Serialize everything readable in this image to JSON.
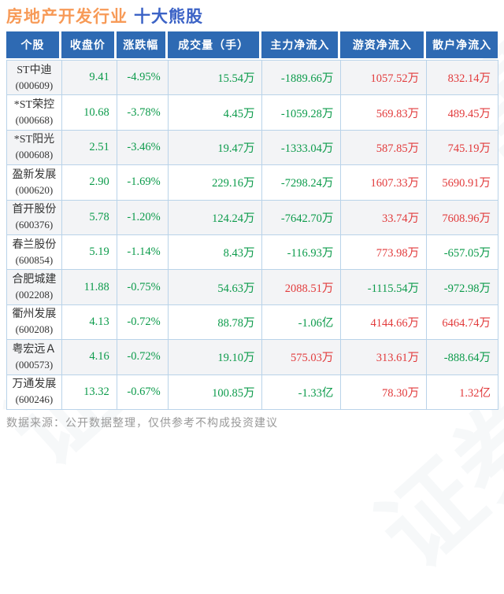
{
  "title": {
    "industry": "房地产开发行业",
    "topic": "十大熊股"
  },
  "watermark": "证券之星",
  "footer": {
    "text": "数据来源：公开数据整理，仅供参考不构成投资建议"
  },
  "colors": {
    "up": "#e23b3c",
    "down": "#0c9b4b",
    "header_bg": "#2e6ab3",
    "header_text": "#ffffff",
    "title_industry": "#f79a57",
    "title_topic": "#3c63c6",
    "footer_text": "#999999"
  },
  "chart_data": {
    "type": "table",
    "title": "房地产开发行业 十大熊股",
    "columns": [
      "个股",
      "收盘价",
      "涨跌幅",
      "成交量（手）",
      "主力净流入",
      "游资净流入",
      "散户净流入"
    ],
    "rows": [
      {
        "name": "ST中迪",
        "code": "(000609)",
        "close": "9.41",
        "change": "-4.95%",
        "volume": "15.54万",
        "main": "-1889.66万",
        "main_dir": "down",
        "hot": "1057.52万",
        "hot_dir": "up",
        "retail": "832.14万",
        "retail_dir": "up"
      },
      {
        "name": "*ST荣控",
        "code": "(000668)",
        "close": "10.68",
        "change": "-3.78%",
        "volume": "4.45万",
        "main": "-1059.28万",
        "main_dir": "down",
        "hot": "569.83万",
        "hot_dir": "up",
        "retail": "489.45万",
        "retail_dir": "up"
      },
      {
        "name": "*ST阳光",
        "code": "(000608)",
        "close": "2.51",
        "change": "-3.46%",
        "volume": "19.47万",
        "main": "-1333.04万",
        "main_dir": "down",
        "hot": "587.85万",
        "hot_dir": "up",
        "retail": "745.19万",
        "retail_dir": "up"
      },
      {
        "name": "盈新发展",
        "code": "(000620)",
        "close": "2.90",
        "change": "-1.69%",
        "volume": "229.16万",
        "main": "-7298.24万",
        "main_dir": "down",
        "hot": "1607.33万",
        "hot_dir": "up",
        "retail": "5690.91万",
        "retail_dir": "up"
      },
      {
        "name": "首开股份",
        "code": "(600376)",
        "close": "5.78",
        "change": "-1.20%",
        "volume": "124.24万",
        "main": "-7642.70万",
        "main_dir": "down",
        "hot": "33.74万",
        "hot_dir": "up",
        "retail": "7608.96万",
        "retail_dir": "up"
      },
      {
        "name": "春兰股份",
        "code": "(600854)",
        "close": "5.19",
        "change": "-1.14%",
        "volume": "8.43万",
        "main": "-116.93万",
        "main_dir": "down",
        "hot": "773.98万",
        "hot_dir": "up",
        "retail": "-657.05万",
        "retail_dir": "down"
      },
      {
        "name": "合肥城建",
        "code": "(002208)",
        "close": "11.88",
        "change": "-0.75%",
        "volume": "54.63万",
        "main": "2088.51万",
        "main_dir": "up",
        "hot": "-1115.54万",
        "hot_dir": "down",
        "retail": "-972.98万",
        "retail_dir": "down"
      },
      {
        "name": "衢州发展",
        "code": "(600208)",
        "close": "4.13",
        "change": "-0.72%",
        "volume": "88.78万",
        "main": "-1.06亿",
        "main_dir": "down",
        "hot": "4144.66万",
        "hot_dir": "up",
        "retail": "6464.74万",
        "retail_dir": "up"
      },
      {
        "name": "粤宏远Ａ",
        "code": "(000573)",
        "close": "4.16",
        "change": "-0.72%",
        "volume": "19.10万",
        "main": "575.03万",
        "main_dir": "up",
        "hot": "313.61万",
        "hot_dir": "up",
        "retail": "-888.64万",
        "retail_dir": "down"
      },
      {
        "name": "万通发展",
        "code": "(600246)",
        "close": "13.32",
        "change": "-0.67%",
        "volume": "100.85万",
        "main": "-1.33亿",
        "main_dir": "down",
        "hot": "78.30万",
        "hot_dir": "up",
        "retail": "1.32亿",
        "retail_dir": "up"
      }
    ],
    "column_value_colors": {
      "close": "down",
      "change": "down",
      "volume": "down"
    },
    "layout": {
      "legend": "none",
      "grid": "on"
    }
  }
}
